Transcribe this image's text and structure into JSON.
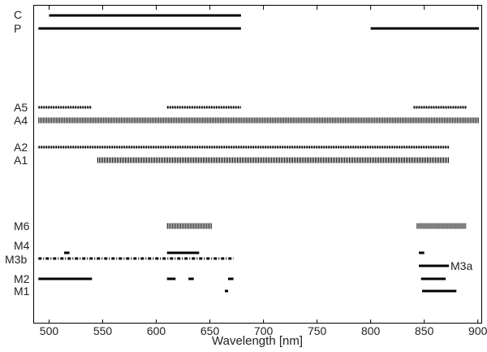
{
  "chart_data": {
    "type": "bar",
    "subtype": "wavelength-coverage-segments",
    "xlabel": "Wavelength [nm]",
    "ylabel": "",
    "title": "",
    "xlim": [
      486,
      904
    ],
    "xticks": [
      500,
      550,
      600,
      650,
      700,
      750,
      800,
      850,
      900
    ],
    "grid": false,
    "legend": "none",
    "color": "#000000",
    "rows": [
      {
        "label": "C",
        "style": "solid",
        "segments": [
          [
            500,
            679
          ]
        ]
      },
      {
        "label": "P",
        "style": "solid",
        "segments": [
          [
            490,
            679
          ],
          [
            800,
            901
          ]
        ]
      },
      {
        "label": "A5",
        "style": "dotted",
        "segments": [
          [
            490,
            540
          ],
          [
            610,
            679
          ],
          [
            840,
            890
          ]
        ]
      },
      {
        "label": "A4",
        "style": "hatched",
        "segments": [
          [
            490,
            901
          ]
        ]
      },
      {
        "label": "A2",
        "style": "dotted",
        "segments": [
          [
            490,
            873
          ]
        ]
      },
      {
        "label": "A1",
        "style": "hatched",
        "segments": [
          [
            545,
            873
          ]
        ]
      },
      {
        "label": "M6",
        "style": "hatched",
        "segments": [
          [
            610,
            652
          ],
          [
            843,
            889
          ]
        ]
      },
      {
        "label": "M4",
        "style": "solid",
        "segments": [
          [
            514,
            519
          ],
          [
            610,
            640
          ],
          [
            845,
            850
          ]
        ]
      },
      {
        "label": "M3b",
        "style": "dashdot",
        "segments": [
          [
            490,
            672
          ]
        ]
      },
      {
        "label": "M3a",
        "style": "solid",
        "segments": [
          [
            845,
            873
          ]
        ]
      },
      {
        "label": "M2",
        "style": "solid",
        "segments": [
          [
            490,
            540
          ],
          [
            610,
            618
          ],
          [
            630,
            635
          ],
          [
            667,
            672
          ],
          [
            847,
            870
          ]
        ]
      },
      {
        "label": "M1",
        "style": "solid",
        "segments": [
          [
            664,
            667
          ],
          [
            848,
            880
          ]
        ]
      }
    ]
  }
}
